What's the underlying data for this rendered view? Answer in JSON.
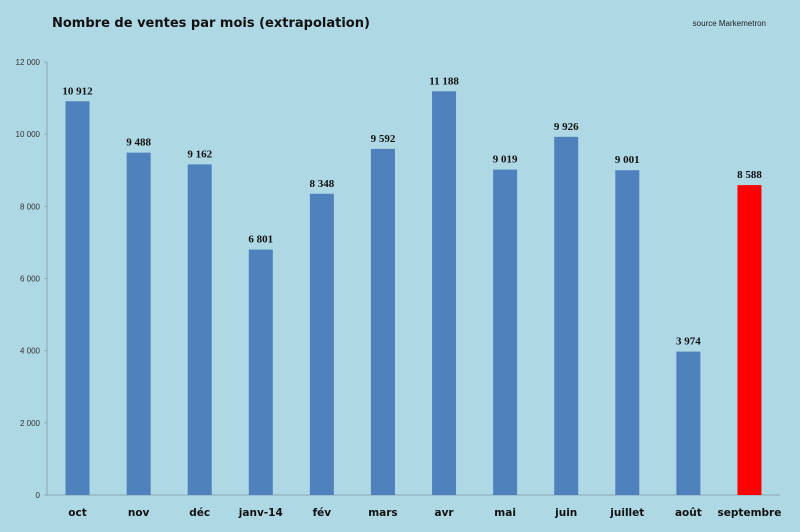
{
  "chart_data": {
    "type": "bar",
    "title": "Nombre de ventes par mois (extrapolation)",
    "source": "source Markemetron",
    "categories": [
      "oct",
      "nov",
      "déc",
      "janv-14",
      "fév",
      "mars",
      "avr",
      "mai",
      "juin",
      "juillet",
      "août",
      "septembre"
    ],
    "values": [
      10912,
      9488,
      9162,
      6801,
      8348,
      9592,
      11188,
      9019,
      9926,
      9001,
      3974,
      8588
    ],
    "data_labels": [
      "10 912",
      "9 488",
      "9 162",
      "6 801",
      "8 348",
      "9 592",
      "11 188",
      "9 019",
      "9 926",
      "9 001",
      "3 974",
      "8 588"
    ],
    "y_ticks": [
      0,
      2000,
      4000,
      6000,
      8000,
      10000,
      12000
    ],
    "y_tick_labels": [
      "0",
      "2 000",
      "4 000",
      "6 000",
      "8 000",
      "10 000",
      "12 000"
    ],
    "ylim": [
      0,
      12000
    ],
    "grid": false,
    "legend": "none",
    "highlight_index": 11,
    "colors": {
      "background": "#add8e4",
      "bar": "#4f81bd",
      "highlight_bar": "#ff0000",
      "highlight_label": "#ff0000",
      "axis": "#8aa6b2"
    }
  }
}
